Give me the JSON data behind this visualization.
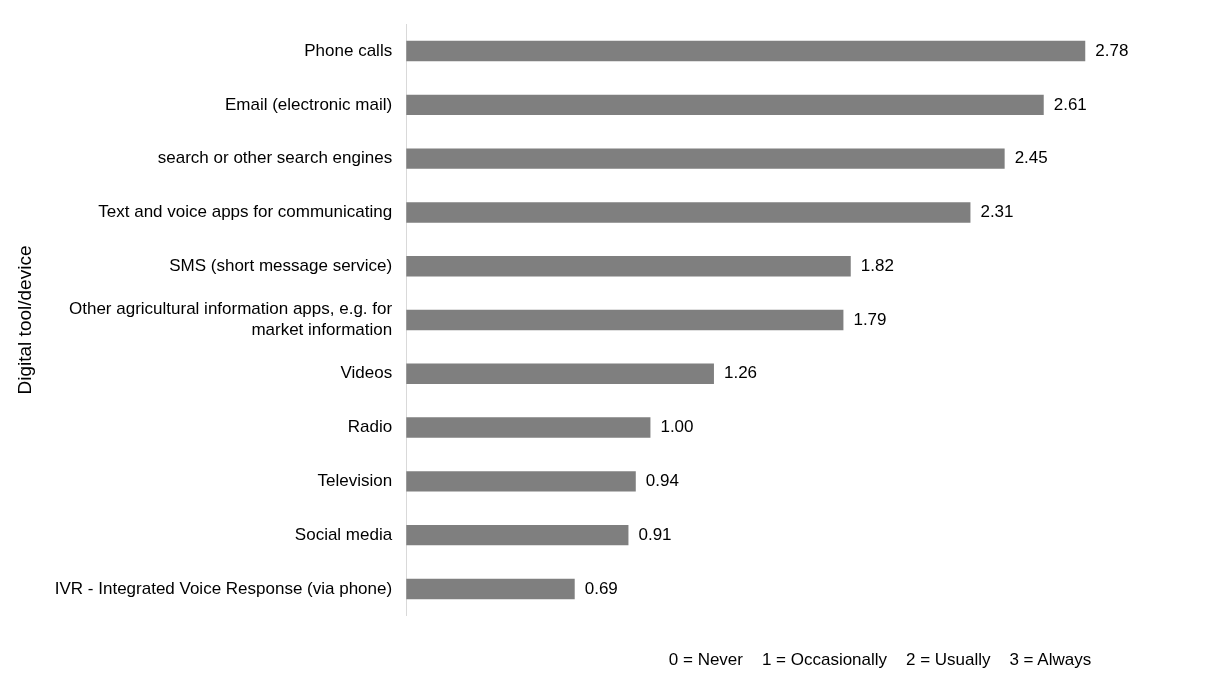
{
  "chart_data": {
    "type": "bar",
    "orientation": "horizontal",
    "ylabel": "Digital tool/device",
    "categories": [
      "Phone calls",
      "Email (electronic mail)",
      "search or other search engines",
      "Text and voice apps for communicating",
      "SMS (short message service)",
      "Other agricultural information apps, e.g. for market information",
      "Videos",
      "Radio",
      "Television",
      "Social media",
      "IVR - Integrated Voice Response (via phone)"
    ],
    "values": [
      2.78,
      2.61,
      2.45,
      2.31,
      1.82,
      1.79,
      1.26,
      1.0,
      0.94,
      0.91,
      0.69
    ],
    "color": "#7f7f7f",
    "value_labels": [
      "2.78",
      "2.61",
      "2.45",
      "2.31",
      "1.82",
      "1.79",
      "1.26",
      "1.00",
      "0.94",
      "0.91",
      "0.69"
    ],
    "annotations": [
      "0 = Never    1 = Occasionally    2 = Usually    3 = Always"
    ],
    "grid": false,
    "legend": false,
    "tick_labels": "y"
  }
}
